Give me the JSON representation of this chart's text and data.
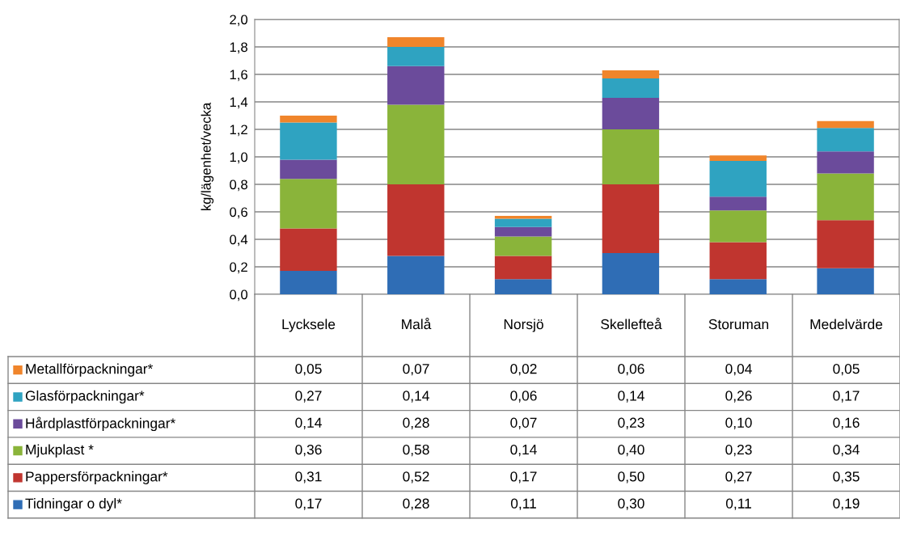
{
  "chart_data": {
    "type": "bar",
    "stacked": true,
    "ylabel": "kg/lägenhet/vecka",
    "categories": [
      "Lycksele",
      "Malå",
      "Norsjö",
      "Skellefteå",
      "Storuman",
      "Medelvärde"
    ],
    "series": [
      {
        "name": "Tidningar o dyl*",
        "color": "#2f6db5",
        "values": [
          0.17,
          0.28,
          0.11,
          0.3,
          0.11,
          0.19
        ],
        "value_labels": [
          "0,17",
          "0,28",
          "0,11",
          "0,30",
          "0,11",
          "0,19"
        ]
      },
      {
        "name": "Pappersförpackningar*",
        "color": "#c0352f",
        "values": [
          0.31,
          0.52,
          0.17,
          0.5,
          0.27,
          0.35
        ],
        "value_labels": [
          "0,31",
          "0,52",
          "0,17",
          "0,50",
          "0,27",
          "0,35"
        ]
      },
      {
        "name": "Mjukplast *",
        "color": "#8ab43a",
        "values": [
          0.36,
          0.58,
          0.14,
          0.4,
          0.23,
          0.34
        ],
        "value_labels": [
          "0,36",
          "0,58",
          "0,14",
          "0,40",
          "0,23",
          "0,34"
        ]
      },
      {
        "name": "Hårdplastförpackningar*",
        "color": "#6b4b9b",
        "values": [
          0.14,
          0.28,
          0.07,
          0.23,
          0.1,
          0.16
        ],
        "value_labels": [
          "0,14",
          "0,28",
          "0,07",
          "0,23",
          "0,10",
          "0,16"
        ]
      },
      {
        "name": "Glasförpackningar*",
        "color": "#2fa3c1",
        "values": [
          0.27,
          0.14,
          0.06,
          0.14,
          0.26,
          0.17
        ],
        "value_labels": [
          "0,27",
          "0,14",
          "0,06",
          "0,14",
          "0,26",
          "0,17"
        ]
      },
      {
        "name": "Metallförpackningar*",
        "color": "#f0852b",
        "values": [
          0.05,
          0.07,
          0.02,
          0.06,
          0.04,
          0.05
        ],
        "value_labels": [
          "0,05",
          "0,07",
          "0,02",
          "0,06",
          "0,04",
          "0,05"
        ]
      }
    ],
    "ylim": [
      0,
      2.0
    ],
    "yticks": [
      {
        "value": 0,
        "label": "0,0"
      },
      {
        "value": 0.2,
        "label": "0,2"
      },
      {
        "value": 0.4,
        "label": "0,4"
      },
      {
        "value": 0.6,
        "label": "0,6"
      },
      {
        "value": 0.8,
        "label": "0,8"
      },
      {
        "value": 1.0,
        "label": "1,0"
      },
      {
        "value": 1.2,
        "label": "1,2"
      },
      {
        "value": 1.4,
        "label": "1,4"
      },
      {
        "value": 1.6,
        "label": "1,6"
      },
      {
        "value": 1.8,
        "label": "1,8"
      },
      {
        "value": 2.0,
        "label": "2,0"
      }
    ],
    "grid": "y",
    "legend": "bottom left"
  }
}
